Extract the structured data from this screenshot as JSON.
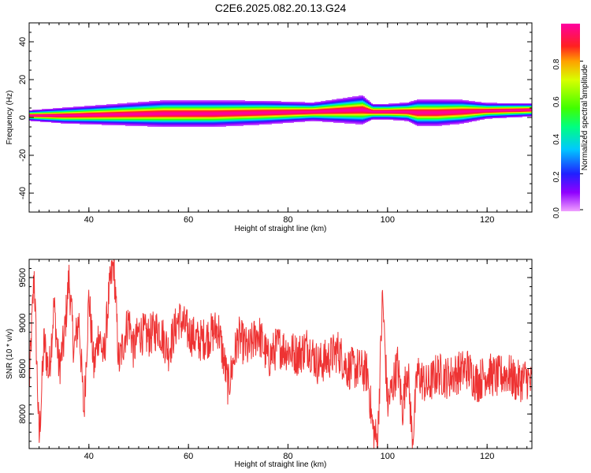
{
  "title": "C2E6.2025.082.20.13.G24",
  "colorbar": {
    "label": "Normalized spectral amplitude",
    "ticks": [
      "0.0",
      "0.2",
      "0.4",
      "0.6",
      "0.8"
    ],
    "range": [
      0,
      1
    ],
    "colormap": "rainbow-magenta-to-magenta"
  },
  "colors": {
    "snr_line": "#ee3333",
    "axis": "#000000",
    "background": "#ffffff"
  },
  "chart_data": [
    {
      "type": "heatmap",
      "xlabel": "Height of straight line (km)",
      "ylabel": "Frequency (Hz)",
      "xlim": [
        28,
        129
      ],
      "ylim": [
        -50,
        50
      ],
      "xticks": [
        "40",
        "60",
        "80",
        "100",
        "120"
      ],
      "yticks": [
        "40",
        "20",
        "0",
        "-20",
        "-40"
      ],
      "ridge": {
        "x": [
          28,
          35,
          45,
          55,
          65,
          75,
          85,
          90,
          95,
          97,
          100,
          104,
          106,
          110,
          115,
          120,
          129
        ],
        "center_hz": [
          1,
          1,
          1.5,
          2,
          2,
          2.5,
          3,
          3.5,
          4,
          3,
          3,
          3,
          2.5,
          2.5,
          3,
          3.5,
          4
        ],
        "halfwidth_hz": [
          2,
          3,
          4,
          5,
          5,
          4.5,
          3.5,
          4.5,
          5.5,
          3,
          3,
          3.5,
          5,
          5,
          4.5,
          3,
          2.5
        ]
      }
    },
    {
      "type": "line",
      "xlabel": "Height of straight line (km)",
      "ylabel": "SNR (10 * v/v)",
      "xlim": [
        28,
        129
      ],
      "ylim": [
        7620,
        9700
      ],
      "xticks": [
        "40",
        "60",
        "80",
        "100",
        "120"
      ],
      "yticks": [
        "9500",
        "9000",
        "8500",
        "8000"
      ],
      "series": [
        {
          "x": [
            28,
            29,
            30,
            31,
            32,
            33,
            34,
            35,
            36,
            37,
            38,
            39,
            40,
            41,
            42,
            43,
            44,
            45,
            46,
            47,
            48,
            49,
            50,
            52,
            54,
            56,
            58,
            60,
            62,
            64,
            66,
            68,
            70,
            72,
            74,
            76,
            78,
            80,
            82,
            84,
            86,
            88,
            90,
            92,
            94,
            96,
            97,
            98,
            99,
            100,
            101,
            102,
            103,
            104,
            105,
            106,
            108,
            110,
            112,
            114,
            116,
            118,
            120,
            122,
            124,
            126,
            128,
            129
          ],
          "values": [
            8300,
            9550,
            7700,
            8800,
            8450,
            9200,
            8500,
            8800,
            9500,
            8700,
            9050,
            8000,
            9300,
            8500,
            8900,
            8600,
            9300,
            9680,
            8550,
            8800,
            9050,
            8700,
            8900,
            8850,
            8950,
            8700,
            9050,
            8900,
            8800,
            8850,
            8950,
            8300,
            8850,
            8700,
            8900,
            8600,
            8750,
            8700,
            8650,
            8750,
            8550,
            8600,
            8700,
            8500,
            8500,
            8450,
            7850,
            7680,
            9300,
            8100,
            8300,
            8550,
            8050,
            8550,
            7700,
            8450,
            8300,
            8450,
            8400,
            8450,
            8500,
            8350,
            8450,
            8400,
            8450,
            8350,
            8400,
            8300
          ],
          "noise": 240
        }
      ]
    }
  ]
}
